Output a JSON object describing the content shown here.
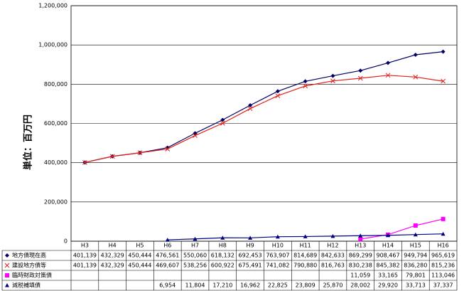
{
  "chart_data": {
    "type": "line",
    "y_label": "単位：百万円",
    "categories": [
      "H3",
      "H4",
      "H5",
      "H6",
      "H7",
      "H8",
      "H9",
      "H10",
      "H11",
      "H12",
      "H13",
      "H14",
      "H15",
      "H16"
    ],
    "ylim": [
      0,
      1200000
    ],
    "yticks": [
      0,
      {
        "value": 200000,
        "label": "200,000"
      },
      {
        "value": 400000,
        "label": "400,000"
      },
      {
        "value": 600000,
        "label": "600,000"
      },
      {
        "value": 800000,
        "label": "800,000"
      },
      {
        "value": 1000000,
        "label": "1,000,000"
      },
      {
        "value": 1200000,
        "label": "1,200,000"
      }
    ],
    "grid": true,
    "series": [
      {
        "name": "地方債現在高",
        "color": "#000066",
        "marker": "diamond",
        "values": [
          401139,
          432329,
          450444,
          476561,
          550060,
          618132,
          692453,
          763907,
          814689,
          842633,
          869299,
          908467,
          949794,
          965619
        ],
        "value_labels": [
          "401,139",
          "432,329",
          "450,444",
          "476,561",
          "550,060",
          "618,132",
          "692,453",
          "763,907",
          "814,689",
          "842,633",
          "869,299",
          "908,467",
          "949,794",
          "965,619"
        ]
      },
      {
        "name": "建設地方債等",
        "color": "#e0201a",
        "marker": "x",
        "values": [
          401139,
          432329,
          450444,
          469607,
          538256,
          600922,
          675491,
          741082,
          790880,
          816763,
          830238,
          845382,
          836280,
          815236
        ],
        "value_labels": [
          "401,139",
          "432,329",
          "450,444",
          "469,607",
          "538,256",
          "600,922",
          "675,491",
          "741,082",
          "790,880",
          "816,763",
          "830,238",
          "845,382",
          "836,280",
          "815,236"
        ]
      },
      {
        "name": "臨時財政対策債",
        "color": "#ff00ff",
        "marker": "square",
        "values": [
          null,
          null,
          null,
          null,
          null,
          null,
          null,
          null,
          null,
          null,
          11059,
          33165,
          79801,
          113046
        ],
        "value_labels": [
          null,
          null,
          null,
          null,
          null,
          null,
          null,
          null,
          null,
          null,
          "11,059",
          "33,165",
          "79,801",
          "113,046"
        ]
      },
      {
        "name": "減税補填債",
        "color": "#000080",
        "marker": "triangle",
        "values": [
          null,
          null,
          null,
          6954,
          11804,
          17210,
          16962,
          22825,
          23809,
          25870,
          28002,
          29920,
          33713,
          37337
        ],
        "value_labels": [
          null,
          null,
          null,
          "6,954",
          "11,804",
          "17,210",
          "16,962",
          "22,825",
          "23,809",
          "25,870",
          "28,002",
          "29,920",
          "33,713",
          "37,337"
        ]
      }
    ]
  }
}
